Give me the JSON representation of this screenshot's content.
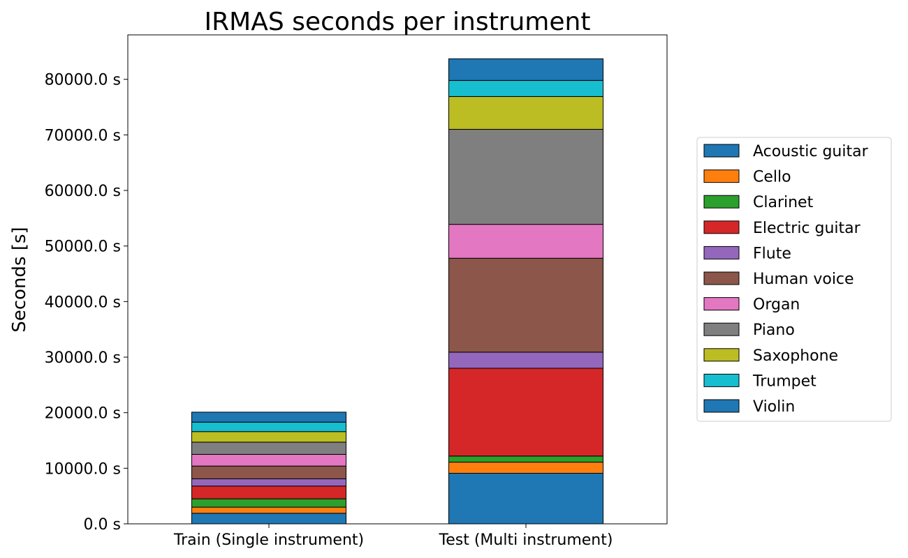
{
  "chart_data": {
    "type": "bar",
    "stacked": true,
    "title": "IRMAS seconds per instrument",
    "xlabel": "",
    "ylabel": "Seconds [s]",
    "categories": [
      "Train (Single instrument)",
      "Test (Multi instrument)"
    ],
    "ylim": [
      0,
      88000
    ],
    "yticks": [
      0,
      10000,
      20000,
      30000,
      40000,
      50000,
      60000,
      70000,
      80000
    ],
    "ytick_labels": [
      "0.0 s",
      "10000.0 s",
      "20000.0 s",
      "30000.0 s",
      "40000.0 s",
      "50000.0 s",
      "60000.0 s",
      "70000.0 s",
      "80000.0 s"
    ],
    "grid": false,
    "legend_position": "right, outside plot area",
    "series": [
      {
        "name": "Acoustic guitar",
        "color": "#1f77b4",
        "values": [
          1900,
          9100
        ]
      },
      {
        "name": "Cello",
        "color": "#ff7f0e",
        "values": [
          1100,
          2000
        ]
      },
      {
        "name": "Clarinet",
        "color": "#2ca02c",
        "values": [
          1500,
          1100
        ]
      },
      {
        "name": "Electric guitar",
        "color": "#d62728",
        "values": [
          2300,
          15800
        ]
      },
      {
        "name": "Flute",
        "color": "#9467bd",
        "values": [
          1300,
          2900
        ]
      },
      {
        "name": "Human voice",
        "color": "#8c564b",
        "values": [
          2300,
          16900
        ]
      },
      {
        "name": "Organ",
        "color": "#e377c2",
        "values": [
          2100,
          6100
        ]
      },
      {
        "name": "Piano",
        "color": "#7f7f7f",
        "values": [
          2200,
          17100
        ]
      },
      {
        "name": "Saxophone",
        "color": "#bcbd22",
        "values": [
          1900,
          5900
        ]
      },
      {
        "name": "Trumpet",
        "color": "#17becf",
        "values": [
          1700,
          2900
        ]
      },
      {
        "name": "Violin",
        "color": "#1f77b4",
        "values": [
          1800,
          3900
        ]
      }
    ]
  }
}
